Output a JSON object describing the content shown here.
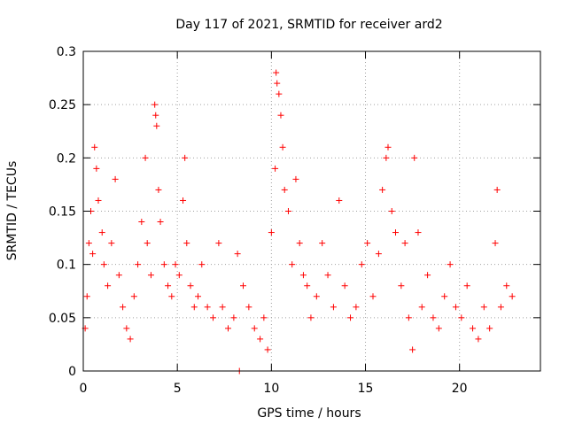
{
  "chart_data": {
    "type": "scatter",
    "title": "Day 117 of 2021, SRMTID for receiver ard2",
    "xlabel": "GPS time / hours",
    "ylabel": "SRMTID / TECUs",
    "xlim": [
      0,
      24.3
    ],
    "ylim": [
      0,
      0.3
    ],
    "xticks": [
      0,
      5,
      10,
      15,
      20
    ],
    "yticks": [
      0,
      0.05,
      0.1,
      0.15,
      0.2,
      0.25,
      0.3
    ],
    "xtick_labels": [
      "0",
      "5",
      "10",
      "15",
      "20"
    ],
    "ytick_labels": [
      "0",
      "0.05",
      "0.1",
      "0.15",
      "0.2",
      "0.25",
      "0.3"
    ],
    "grid": true,
    "marker": "plus",
    "color": "#ff0000",
    "series": [
      {
        "name": "SRMTID",
        "points": [
          [
            0.1,
            0.04
          ],
          [
            0.2,
            0.07
          ],
          [
            0.3,
            0.12
          ],
          [
            0.4,
            0.15
          ],
          [
            0.5,
            0.11
          ],
          [
            0.6,
            0.21
          ],
          [
            0.7,
            0.19
          ],
          [
            0.8,
            0.16
          ],
          [
            1.0,
            0.13
          ],
          [
            1.1,
            0.1
          ],
          [
            1.3,
            0.08
          ],
          [
            1.5,
            0.12
          ],
          [
            1.7,
            0.18
          ],
          [
            1.9,
            0.09
          ],
          [
            2.1,
            0.06
          ],
          [
            2.3,
            0.04
          ],
          [
            2.5,
            0.03
          ],
          [
            2.7,
            0.07
          ],
          [
            2.9,
            0.1
          ],
          [
            3.1,
            0.14
          ],
          [
            3.3,
            0.2
          ],
          [
            3.4,
            0.12
          ],
          [
            3.6,
            0.09
          ],
          [
            3.8,
            0.25
          ],
          [
            3.85,
            0.24
          ],
          [
            3.9,
            0.23
          ],
          [
            4.0,
            0.17
          ],
          [
            4.1,
            0.14
          ],
          [
            4.3,
            0.1
          ],
          [
            4.5,
            0.08
          ],
          [
            4.7,
            0.07
          ],
          [
            4.9,
            0.1
          ],
          [
            5.1,
            0.09
          ],
          [
            5.3,
            0.16
          ],
          [
            5.4,
            0.2
          ],
          [
            5.5,
            0.12
          ],
          [
            5.7,
            0.08
          ],
          [
            5.9,
            0.06
          ],
          [
            6.1,
            0.07
          ],
          [
            6.3,
            0.1
          ],
          [
            6.6,
            0.06
          ],
          [
            6.9,
            0.05
          ],
          [
            7.2,
            0.12
          ],
          [
            7.4,
            0.06
          ],
          [
            7.7,
            0.04
          ],
          [
            8.0,
            0.05
          ],
          [
            8.2,
            0.11
          ],
          [
            8.3,
            0.0
          ],
          [
            8.5,
            0.08
          ],
          [
            8.8,
            0.06
          ],
          [
            9.1,
            0.04
          ],
          [
            9.4,
            0.03
          ],
          [
            9.6,
            0.05
          ],
          [
            9.8,
            0.02
          ],
          [
            10.0,
            0.13
          ],
          [
            10.2,
            0.19
          ],
          [
            10.25,
            0.28
          ],
          [
            10.3,
            0.27
          ],
          [
            10.4,
            0.26
          ],
          [
            10.5,
            0.24
          ],
          [
            10.6,
            0.21
          ],
          [
            10.7,
            0.17
          ],
          [
            10.9,
            0.15
          ],
          [
            11.1,
            0.1
          ],
          [
            11.3,
            0.18
          ],
          [
            11.5,
            0.12
          ],
          [
            11.7,
            0.09
          ],
          [
            11.9,
            0.08
          ],
          [
            12.1,
            0.05
          ],
          [
            12.4,
            0.07
          ],
          [
            12.7,
            0.12
          ],
          [
            13.0,
            0.09
          ],
          [
            13.3,
            0.06
          ],
          [
            13.6,
            0.16
          ],
          [
            13.9,
            0.08
          ],
          [
            14.2,
            0.05
          ],
          [
            14.5,
            0.06
          ],
          [
            14.8,
            0.1
          ],
          [
            15.1,
            0.12
          ],
          [
            15.4,
            0.07
          ],
          [
            15.7,
            0.11
          ],
          [
            15.9,
            0.17
          ],
          [
            16.1,
            0.2
          ],
          [
            16.2,
            0.21
          ],
          [
            16.4,
            0.15
          ],
          [
            16.6,
            0.13
          ],
          [
            16.9,
            0.08
          ],
          [
            17.1,
            0.12
          ],
          [
            17.3,
            0.05
          ],
          [
            17.5,
            0.02
          ],
          [
            17.6,
            0.2
          ],
          [
            17.8,
            0.13
          ],
          [
            18.0,
            0.06
          ],
          [
            18.3,
            0.09
          ],
          [
            18.6,
            0.05
          ],
          [
            18.9,
            0.04
          ],
          [
            19.2,
            0.07
          ],
          [
            19.5,
            0.1
          ],
          [
            19.8,
            0.06
          ],
          [
            20.1,
            0.05
          ],
          [
            20.4,
            0.08
          ],
          [
            20.7,
            0.04
          ],
          [
            21.0,
            0.03
          ],
          [
            21.3,
            0.06
          ],
          [
            21.6,
            0.04
          ],
          [
            21.9,
            0.12
          ],
          [
            22.0,
            0.17
          ],
          [
            22.2,
            0.06
          ],
          [
            22.5,
            0.08
          ],
          [
            22.8,
            0.07
          ]
        ]
      }
    ]
  }
}
